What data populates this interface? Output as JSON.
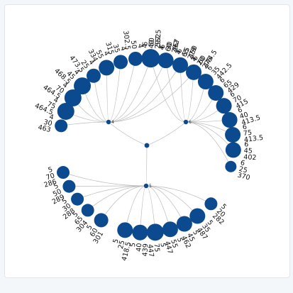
{
  "colors": {
    "node": "#0b4a8f",
    "edge": "#bdbdbd",
    "text": "#111111",
    "hub": "#0b4a8f"
  },
  "tree": {
    "root": {
      "label": ""
    },
    "groups": [
      {
        "label": "4",
        "leaves": [
          {
            "lines": [
              "4",
              "30",
              "463"
            ],
            "size": 9
          },
          {
            "lines": [
              "4",
              "75",
              "464.5"
            ],
            "size": 12
          },
          {
            "lines": [
              "4",
              "70",
              "464.5"
            ],
            "size": 12
          },
          {
            "lines": [
              "4",
              "45",
              "468.5"
            ],
            "size": 12
          },
          {
            "lines": [
              "4",
              "25",
              "473.5"
            ],
            "size": 10
          },
          {
            "lines": [
              "4",
              "55",
              "334"
            ],
            "size": 11
          },
          {
            "lines": [
              "4",
              "35",
              "315"
            ],
            "size": 10
          },
          {
            "lines": [
              "4",
              "50",
              "302.5"
            ],
            "size": 10
          },
          {
            "lines": [
              "4",
              "40",
              "297.5"
            ],
            "size": 10
          },
          {
            "lines": [
              "4",
              "60",
              "292"
            ],
            "size": 9
          },
          {
            "lines": [
              "4",
              "65",
              "279"
            ],
            "size": 9
          },
          {
            "lines": [
              "4",
              "20",
              "275"
            ],
            "size": 9
          }
        ]
      },
      {
        "label": "6",
        "leaves": [
          {
            "lines": [
              "6",
              "50",
              "552"
            ],
            "size": 13
          },
          {
            "lines": [
              "6",
              "30",
              "467"
            ],
            "size": 11
          },
          {
            "lines": [
              "6",
              "55",
              "450"
            ],
            "size": 11
          },
          {
            "lines": [
              "6",
              "60",
              "444.5"
            ],
            "size": 11
          },
          {
            "lines": [
              "6",
              "35",
              "442.5"
            ],
            "size": 11
          },
          {
            "lines": [
              "6",
              "65",
              "429"
            ],
            "size": 11
          },
          {
            "lines": [
              "6",
              "70",
              "415"
            ],
            "size": 11
          },
          {
            "lines": [
              "6",
              "40",
              "413.5"
            ],
            "size": 11
          },
          {
            "lines": [
              "6",
              "75",
              "413.5"
            ],
            "size": 11
          },
          {
            "lines": [
              "6",
              "45",
              "402"
            ],
            "size": 11
          },
          {
            "lines": [
              "6",
              "25",
              "370"
            ],
            "size": 8
          }
        ]
      },
      {
        "label": "5",
        "leaves": [
          {
            "lines": [
              "5",
              "25",
              "418.5"
            ],
            "size": 11
          },
          {
            "lines": [
              "5",
              "40",
              "439"
            ],
            "size": 11
          },
          {
            "lines": [
              "5",
              "75",
              "447"
            ],
            "size": 12
          },
          {
            "lines": [
              "5",
              "55",
              "447"
            ],
            "size": 11
          },
          {
            "lines": [
              "5",
              "45",
              "462"
            ],
            "size": 11
          },
          {
            "lines": [
              "5",
              "35",
              "487"
            ],
            "size": 11
          },
          {
            "lines": [
              "5",
              "20",
              "282"
            ],
            "size": 9
          },
          {
            "lines": [
              "5",
              "70",
              "286"
            ],
            "size": 9
          },
          {
            "lines": [
              "5",
              "50",
              "289"
            ],
            "size": 9
          },
          {
            "lines": [
              "5",
              "30",
              "288"
            ],
            "size": 9
          },
          {
            "lines": [
              "5",
              "65",
              "304"
            ],
            "size": 9
          },
          {
            "lines": [
              "5",
              "60",
              "301"
            ],
            "size": 10
          }
        ]
      }
    ]
  }
}
